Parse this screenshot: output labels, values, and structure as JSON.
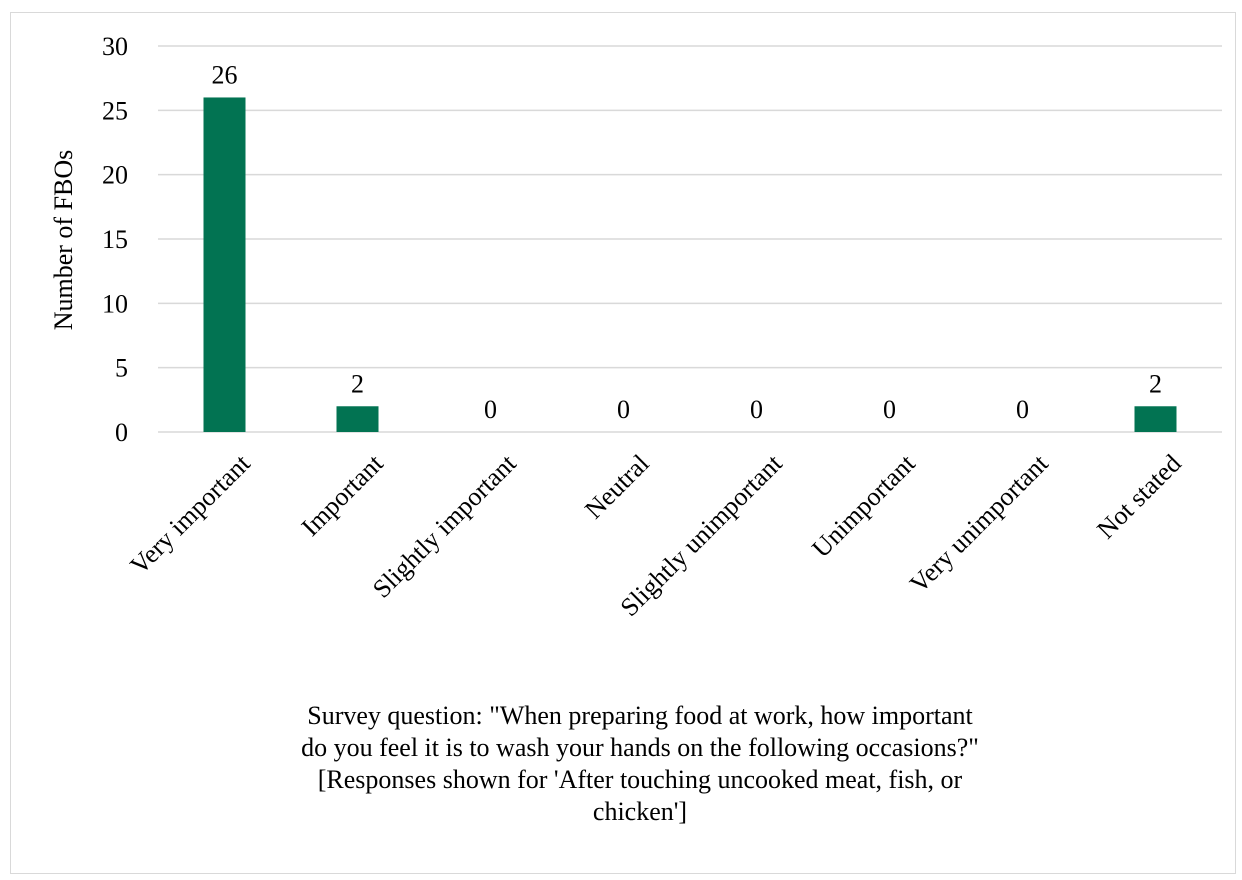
{
  "chart_data": {
    "type": "bar",
    "title": "",
    "ylabel": "Number of FBOs",
    "xlabel_lines": [
      "Survey question: \"When preparing food at work, how important",
      "do you feel it is to wash your hands on the following occasions?\"",
      "[Responses shown for 'After touching uncooked meat, fish, or",
      "chicken']"
    ],
    "categories": [
      "Very important",
      "Important",
      "Slightly important",
      "Neutral",
      "Slightly unimportant",
      "Unimportant",
      "Very unimportant",
      "Not stated"
    ],
    "values": [
      26,
      2,
      0,
      0,
      0,
      0,
      0,
      2
    ],
    "ylim": [
      0,
      30
    ],
    "yticks": [
      0,
      5,
      10,
      15,
      20,
      25,
      30
    ],
    "grid": true,
    "legend": "none",
    "bar_color": "#027352",
    "grid_color": "#d9d9d9"
  }
}
